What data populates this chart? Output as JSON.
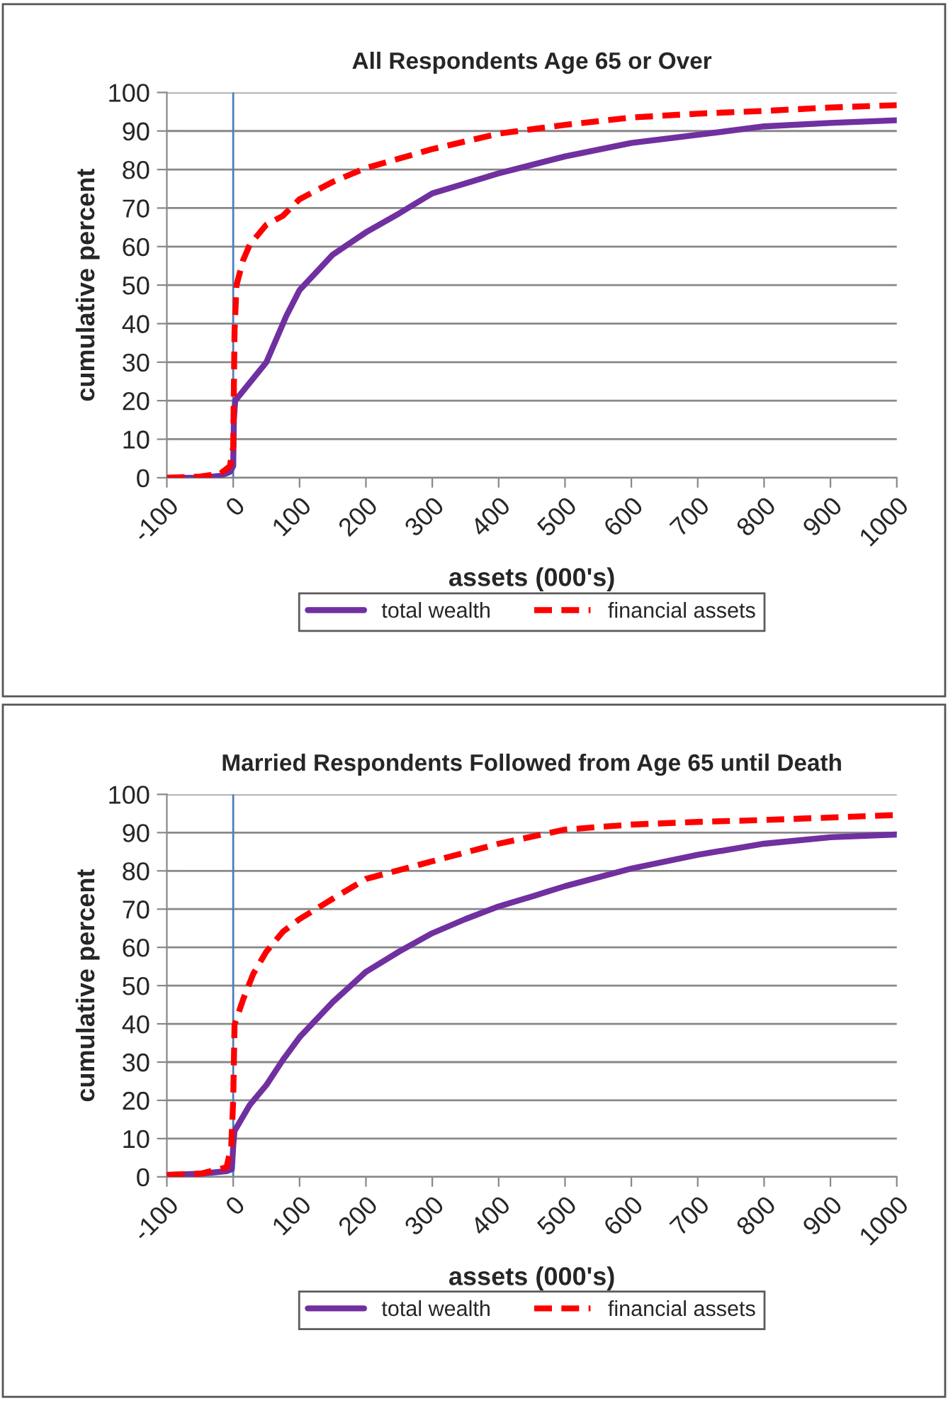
{
  "chart_data": [
    {
      "type": "line",
      "title": "All Respondents Age 65 or Over",
      "xlabel": "assets (000's)",
      "ylabel": "cumulative percent",
      "xlim": [
        -100,
        1000
      ],
      "xticks": [
        -100,
        0,
        100,
        200,
        300,
        400,
        500,
        600,
        700,
        800,
        900,
        1000
      ],
      "ylim": [
        0,
        100
      ],
      "yticks": [
        0,
        10,
        20,
        30,
        40,
        50,
        60,
        70,
        80,
        90,
        100
      ],
      "grid": "y",
      "legend": "bottom",
      "marker": "none",
      "ref_lines": [
        {
          "axis": "x",
          "value": 0,
          "color": "#4a7ebb"
        }
      ],
      "series": [
        {
          "name": "total wealth",
          "color": "#7030a0",
          "line_style": "solid",
          "x": [
            -100,
            -50,
            -20,
            -5,
            0,
            1,
            3,
            50,
            80,
            100,
            150,
            200,
            250,
            300,
            400,
            500,
            600,
            700,
            800,
            900,
            1000
          ],
          "values": [
            0,
            0,
            0.5,
            1.5,
            3,
            15,
            20,
            30,
            42,
            48.7,
            57.9,
            63.7,
            68.6,
            73.8,
            79,
            83.4,
            86.9,
            89,
            91.2,
            92.1,
            92.8
          ]
        },
        {
          "name": "financial assets",
          "color": "#ff0000",
          "line_style": "dashed",
          "x": [
            -100,
            -50,
            -20,
            -5,
            0,
            2,
            5,
            15,
            25,
            50,
            75,
            100,
            150,
            200,
            300,
            400,
            500,
            600,
            700,
            800,
            900,
            1000
          ],
          "values": [
            0,
            0.3,
            1,
            3,
            8,
            38,
            50,
            56.5,
            60.5,
            65.7,
            68,
            72.3,
            76.8,
            80.4,
            85.3,
            89.3,
            91.6,
            93.5,
            94.5,
            95.2,
            96.1,
            96.7
          ]
        }
      ]
    },
    {
      "type": "line",
      "title": "Married Respondents Followed from Age 65 until Death",
      "xlabel": "assets (000's)",
      "ylabel": "cumulative percent",
      "xlim": [
        -100,
        1000
      ],
      "xticks": [
        -100,
        0,
        100,
        200,
        300,
        400,
        500,
        600,
        700,
        800,
        900,
        1000
      ],
      "ylim": [
        0,
        100
      ],
      "yticks": [
        0,
        10,
        20,
        30,
        40,
        50,
        60,
        70,
        80,
        90,
        100
      ],
      "grid": "y",
      "legend": "bottom",
      "marker": "none",
      "ref_lines": [
        {
          "axis": "x",
          "value": 0,
          "color": "#4a7ebb"
        }
      ],
      "series": [
        {
          "name": "total wealth",
          "color": "#7030a0",
          "line_style": "solid",
          "x": [
            -100,
            -50,
            -10,
            -2,
            0,
            2,
            25,
            50,
            75,
            100,
            150,
            200,
            250,
            300,
            350,
            400,
            450,
            500,
            600,
            700,
            800,
            900,
            1000
          ],
          "values": [
            0.5,
            0.8,
            1.5,
            2,
            8,
            12,
            18.8,
            24,
            30.6,
            36.5,
            45.7,
            53.6,
            58.9,
            63.7,
            67.4,
            70.7,
            73.3,
            76,
            80.6,
            84.2,
            87.1,
            88.8,
            89.5
          ]
        },
        {
          "name": "financial assets",
          "color": "#ff0000",
          "line_style": "dashed",
          "x": [
            -100,
            -50,
            -10,
            -3,
            0,
            2,
            15,
            30,
            50,
            75,
            100,
            150,
            200,
            300,
            400,
            500,
            600,
            700,
            800,
            1000
          ],
          "values": [
            0.5,
            0.8,
            2.5,
            8,
            20,
            39.8,
            46.4,
            53,
            58.9,
            64.1,
            67.4,
            72.7,
            77.9,
            82.5,
            87.1,
            90.8,
            92.1,
            92.8,
            93.3,
            94.6
          ]
        }
      ]
    }
  ]
}
